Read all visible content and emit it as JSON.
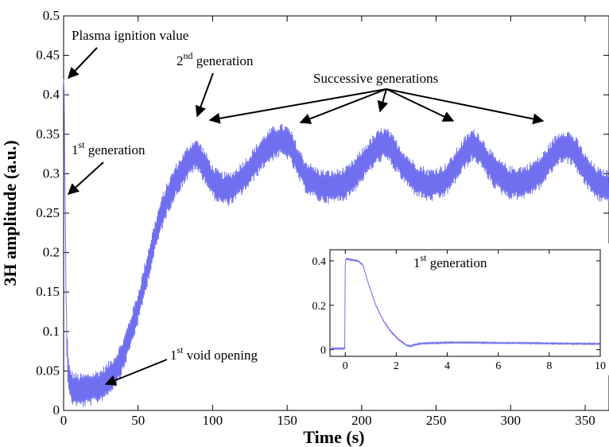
{
  "chart_data": [
    {
      "type": "line",
      "xlabel": "Time (s)",
      "ylabel": "3H amplitude (a.u.)",
      "xlim": [
        0,
        366
      ],
      "ylim": [
        0,
        0.5
      ],
      "x_ticks": [
        0,
        50,
        100,
        150,
        200,
        250,
        300,
        350
      ],
      "y_ticks": [
        0,
        0.05,
        0.1,
        0.15,
        0.2,
        0.25,
        0.3,
        0.35,
        0.4,
        0.45,
        0.5
      ],
      "x_tick_labels": [
        "0",
        "50",
        "100",
        "150",
        "200",
        "250",
        "300",
        "350"
      ],
      "y_tick_labels": [
        "0",
        "0.05",
        "0.1",
        "0.15",
        "0.2",
        "0.25",
        "0.3",
        "0.35",
        "0.4",
        "0.45",
        "0.5"
      ],
      "grid": false,
      "line_color": "#6f6ff0",
      "series": [
        {
          "x": [
            0,
            0.3,
            1,
            2,
            3,
            4,
            6,
            10,
            15,
            20,
            25,
            30,
            35,
            40,
            45,
            50,
            55,
            60,
            65,
            70,
            75,
            80,
            85,
            88,
            92,
            96,
            100,
            105,
            110,
            115,
            120,
            125,
            130,
            135,
            140,
            145,
            150,
            153,
            157,
            162,
            167,
            172,
            180,
            190,
            195,
            200,
            205,
            210,
            214,
            218,
            222,
            228,
            235,
            245,
            255,
            260,
            265,
            270,
            274,
            278,
            282,
            290,
            300,
            310,
            320,
            325,
            330,
            335,
            340,
            345,
            350,
            355,
            360,
            366
          ],
          "y": [
            0.42,
            0.41,
            0.27,
            0.1,
            0.05,
            0.035,
            0.028,
            0.025,
            0.026,
            0.028,
            0.032,
            0.04,
            0.052,
            0.07,
            0.1,
            0.13,
            0.17,
            0.21,
            0.245,
            0.27,
            0.29,
            0.305,
            0.318,
            0.325,
            0.318,
            0.305,
            0.29,
            0.282,
            0.28,
            0.285,
            0.295,
            0.305,
            0.318,
            0.33,
            0.338,
            0.342,
            0.34,
            0.332,
            0.315,
            0.298,
            0.29,
            0.285,
            0.283,
            0.288,
            0.298,
            0.31,
            0.322,
            0.332,
            0.338,
            0.335,
            0.325,
            0.31,
            0.295,
            0.285,
            0.29,
            0.3,
            0.315,
            0.328,
            0.336,
            0.333,
            0.322,
            0.3,
            0.288,
            0.29,
            0.302,
            0.315,
            0.328,
            0.336,
            0.333,
            0.322,
            0.305,
            0.293,
            0.285,
            0.283
          ],
          "noise_amplitude": 0.022
        }
      ],
      "annotations": [
        {
          "text": "Plasma ignition value",
          "target": [
            0.5,
            0.42
          ]
        },
        {
          "text": "1",
          "sup": "st",
          "after": " generation",
          "target": [
            1.5,
            0.27
          ]
        },
        {
          "text": "2",
          "sup": "nd",
          "after": " generation",
          "target": [
            88,
            0.36
          ]
        },
        {
          "text": "Successive generations",
          "targets": [
            [
              95,
              0.335
            ],
            [
              157,
              0.325
            ],
            [
              214,
              0.332
            ],
            [
              273,
              0.325
            ],
            [
              330,
              0.325
            ]
          ]
        },
        {
          "text": "1",
          "sup": "st",
          "after": " void opening",
          "target": [
            27,
            0.034
          ]
        }
      ]
    },
    {
      "type": "line",
      "role": "inset",
      "title": "1",
      "title_sup": "st",
      "title_after": " generation",
      "xlim": [
        -0.6,
        10
      ],
      "ylim": [
        -0.03,
        0.45
      ],
      "x_ticks": [
        0,
        2,
        4,
        6,
        8,
        10
      ],
      "y_ticks": [
        0,
        0.2,
        0.4
      ],
      "x_tick_labels": [
        "0",
        "2",
        "4",
        "6",
        "8",
        "10"
      ],
      "y_tick_labels": [
        "0",
        "0.2",
        "0.4"
      ],
      "grid": false,
      "line_color": "#6f6ff0",
      "series": [
        {
          "x": [
            -0.6,
            -0.02,
            0,
            0.05,
            0.2,
            0.5,
            0.7,
            0.9,
            1.2,
            1.5,
            1.8,
            2.1,
            2.4,
            2.55,
            2.7,
            3,
            4,
            5,
            6,
            7,
            8,
            9,
            10
          ],
          "y": [
            0.005,
            0.005,
            0.4,
            0.41,
            0.405,
            0.4,
            0.38,
            0.3,
            0.2,
            0.13,
            0.08,
            0.045,
            0.02,
            0.015,
            0.022,
            0.028,
            0.032,
            0.032,
            0.03,
            0.03,
            0.028,
            0.027,
            0.026
          ],
          "noise_amplitude": 0.003
        }
      ]
    }
  ]
}
